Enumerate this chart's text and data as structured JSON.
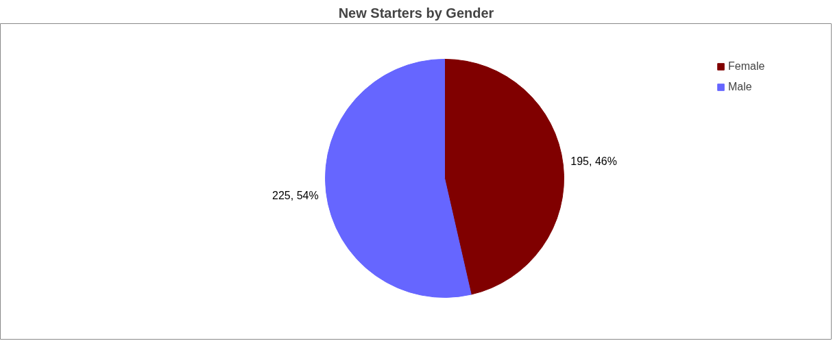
{
  "chart_data": {
    "type": "pie",
    "title": "New Starters by Gender",
    "categories": [
      "Female",
      "Male"
    ],
    "values": [
      195,
      225
    ],
    "colors": [
      "#800000",
      "#6666ff"
    ],
    "value_labels": [
      "195, 46%",
      "225, 54%"
    ],
    "legend": "top right"
  }
}
